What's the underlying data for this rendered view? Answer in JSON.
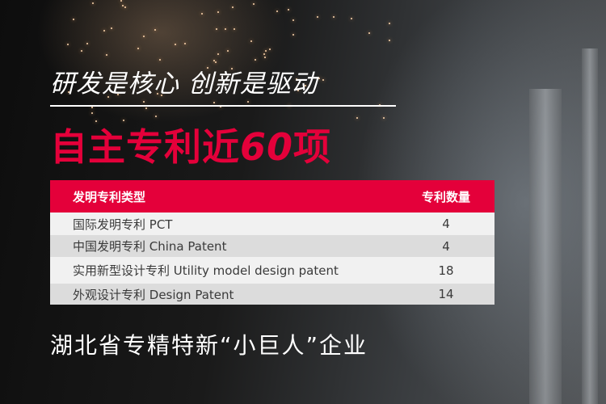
{
  "headline": "研发是核心 创新是驱动",
  "subheadline_prefix": "自主专利近",
  "subheadline_number": "60",
  "subheadline_suffix": "项",
  "table": {
    "headers": [
      "发明专利类型",
      "专利数量"
    ],
    "rows": [
      {
        "type": "国际发明专利   PCT",
        "count": "4"
      },
      {
        "type": "中国发明专利   China Patent",
        "count": "4"
      },
      {
        "type": "实用新型设计专利  Utility model design patent",
        "count": "18"
      },
      {
        "type": "外观设计专利  Design Patent",
        "count": "14"
      }
    ]
  },
  "footer": "湖北省专精特新“小巨人”企业",
  "colors": {
    "accent": "#e4003a",
    "row_light": "#f1f1f1",
    "row_dark": "#dcdcdc"
  }
}
